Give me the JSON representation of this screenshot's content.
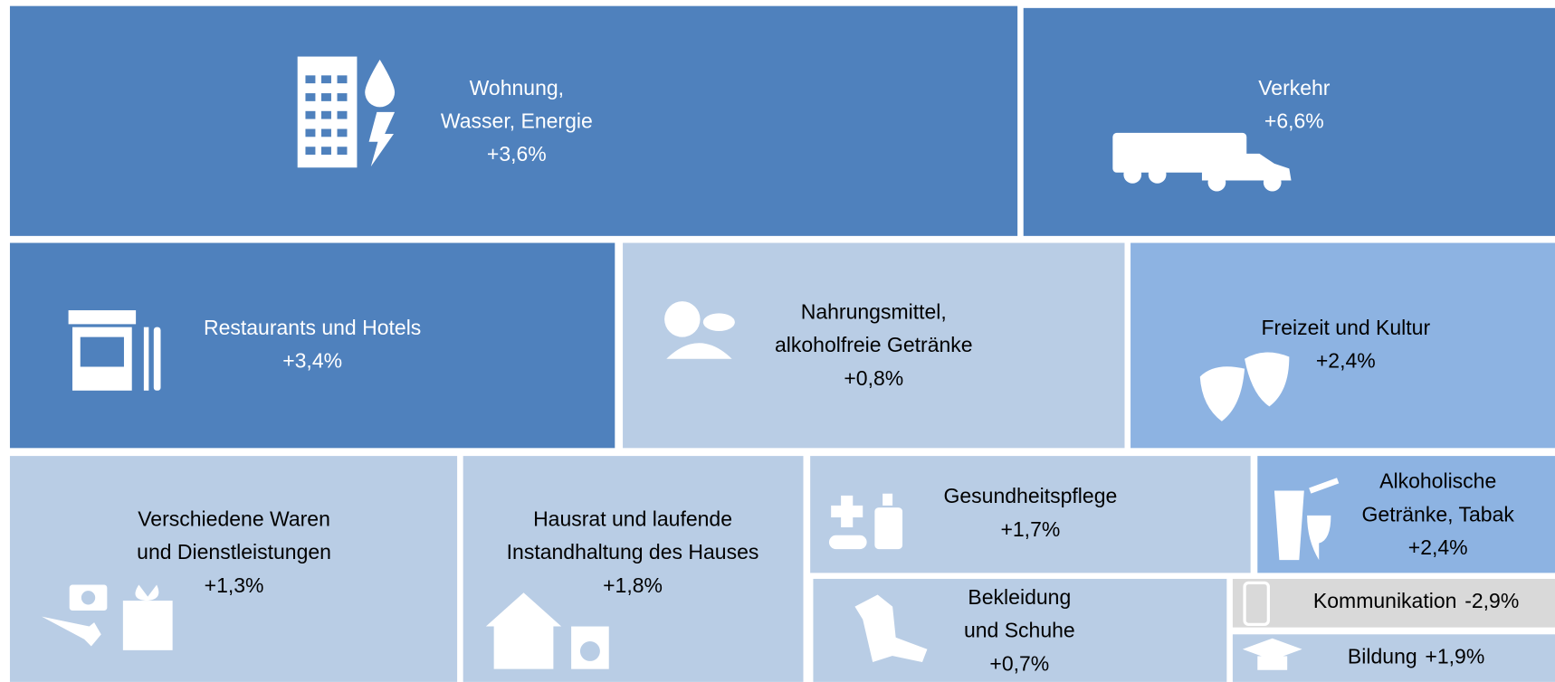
{
  "tiles": [
    {
      "label": [
        "Wohnung,",
        "Wasser, Energie"
      ],
      "change": "+3,6%"
    },
    {
      "label": [
        "Verkehr"
      ],
      "change": "+6,6%"
    },
    {
      "label": [
        "Restaurants und Hotels"
      ],
      "change": "+3,4%"
    },
    {
      "label": [
        "Nahrungsmittel,",
        "alkoholfreie Getränke"
      ],
      "change": "+0,8%"
    },
    {
      "label": [
        "Freizeit und Kultur"
      ],
      "change": "+2,4%"
    },
    {
      "label": [
        "Verschiedene Waren",
        "und Dienstleistungen"
      ],
      "change": "+1,3%"
    },
    {
      "label": [
        "Hausrat und laufende",
        "Instandhaltung des Hauses"
      ],
      "change": "+1,8%"
    },
    {
      "label": [
        "Gesundheitspflege"
      ],
      "change": "+1,7%"
    },
    {
      "label": [
        "Alkoholische",
        "Getränke, Tabak"
      ],
      "change": "+2,4%"
    },
    {
      "label": [
        "Bekleidung",
        "und Schuhe"
      ],
      "change": "+0,7%"
    },
    {
      "label": [
        "Kommunikation"
      ],
      "change": "-2,9%"
    },
    {
      "label": [
        "Bildung"
      ],
      "change": "+1,9%"
    }
  ]
}
